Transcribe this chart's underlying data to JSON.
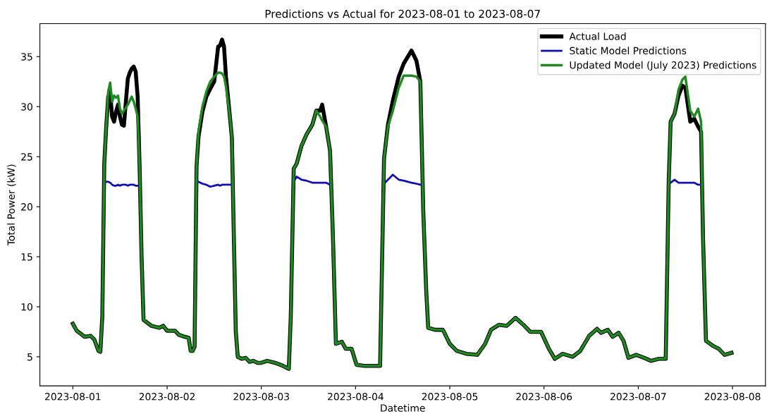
{
  "chart_data": {
    "type": "line",
    "title": "Predictions vs Actual for 2023-08-01 to 2023-08-07",
    "xlabel": "Datetime",
    "ylabel": "Total Power (kW)",
    "x": [
      "2023-08-01T00:00",
      "2023-08-01T01:00",
      "2023-08-01T03:00",
      "2023-08-01T04:30",
      "2023-08-01T05:30",
      "2023-08-01T06:30",
      "2023-08-01T07:00",
      "2023-08-01T07:30",
      "2023-08-01T08:00",
      "2023-08-01T08:30",
      "2023-08-01T09:00",
      "2023-08-01T09:30",
      "2023-08-01T10:00",
      "2023-08-01T10:30",
      "2023-08-01T11:00",
      "2023-08-01T11:30",
      "2023-08-01T12:00",
      "2023-08-01T12:30",
      "2023-08-01T13:00",
      "2023-08-01T13:30",
      "2023-08-01T14:00",
      "2023-08-01T14:30",
      "2023-08-01T15:00",
      "2023-08-01T15:30",
      "2023-08-01T16:00",
      "2023-08-01T16:30",
      "2023-08-01T17:00",
      "2023-08-01T17:30",
      "2023-08-01T18:00",
      "2023-08-01T19:00",
      "2023-08-01T20:00",
      "2023-08-01T21:00",
      "2023-08-01T22:00",
      "2023-08-01T23:00",
      "2023-08-02T00:00",
      "2023-08-02T01:00",
      "2023-08-02T02:00",
      "2023-08-02T03:00",
      "2023-08-02T04:30",
      "2023-08-02T05:30",
      "2023-08-02T06:00",
      "2023-08-02T06:30",
      "2023-08-02T07:00",
      "2023-08-02T07:30",
      "2023-08-02T08:00",
      "2023-08-02T09:00",
      "2023-08-02T10:00",
      "2023-08-02T11:00",
      "2023-08-02T12:00",
      "2023-08-02T13:00",
      "2023-08-02T13:30",
      "2023-08-02T14:00",
      "2023-08-02T14:30",
      "2023-08-02T15:00",
      "2023-08-02T16:00",
      "2023-08-02T16:30",
      "2023-08-02T17:00",
      "2023-08-02T17:30",
      "2023-08-02T18:00",
      "2023-08-02T19:00",
      "2023-08-02T20:00",
      "2023-08-02T21:00",
      "2023-08-02T22:00",
      "2023-08-02T23:00",
      "2023-08-03T00:00",
      "2023-08-03T01:30",
      "2023-08-03T03:30",
      "2023-08-03T05:30",
      "2023-08-03T07:00",
      "2023-08-03T07:30",
      "2023-08-03T08:15",
      "2023-08-03T09:00",
      "2023-08-03T10:15",
      "2023-08-03T11:30",
      "2023-08-03T13:00",
      "2023-08-03T14:00",
      "2023-08-03T15:00",
      "2023-08-03T15:30",
      "2023-08-03T16:30",
      "2023-08-03T17:30",
      "2023-08-03T18:15",
      "2023-08-03T19:00",
      "2023-08-03T20:30",
      "2023-08-03T21:30",
      "2023-08-03T23:00",
      "2023-08-04T00:15",
      "2023-08-04T02:15",
      "2023-08-04T04:15",
      "2023-08-04T06:15",
      "2023-08-04T07:15",
      "2023-08-04T08:15",
      "2023-08-04T09:30",
      "2023-08-04T11:00",
      "2023-08-04T12:15",
      "2023-08-04T14:15",
      "2023-08-04T15:30",
      "2023-08-04T16:30",
      "2023-08-04T17:15",
      "2023-08-04T18:00",
      "2023-08-04T18:30",
      "2023-08-04T20:15",
      "2023-08-04T22:15",
      "2023-08-05T00:00",
      "2023-08-05T01:45",
      "2023-08-05T04:15",
      "2023-08-05T07:00",
      "2023-08-05T09:00",
      "2023-08-05T10:30",
      "2023-08-05T12:30",
      "2023-08-05T14:30",
      "2023-08-05T16:45",
      "2023-08-05T18:45",
      "2023-08-05T20:30",
      "2023-08-05T23:15",
      "2023-08-06T01:15",
      "2023-08-06T02:45",
      "2023-08-06T04:45",
      "2023-08-06T07:15",
      "2023-08-06T09:15",
      "2023-08-06T11:30",
      "2023-08-06T13:30",
      "2023-08-06T14:30",
      "2023-08-06T16:15",
      "2023-08-06T17:30",
      "2023-08-06T19:00",
      "2023-08-06T20:15",
      "2023-08-06T21:30",
      "2023-08-06T23:30",
      "2023-08-07T01:30",
      "2023-08-07T03:15",
      "2023-08-07T05:15",
      "2023-08-07T07:00",
      "2023-08-07T07:45",
      "2023-08-07T08:15",
      "2023-08-07T09:15",
      "2023-08-07T10:15",
      "2023-08-07T11:15",
      "2023-08-07T12:00",
      "2023-08-07T13:15",
      "2023-08-07T14:15",
      "2023-08-07T15:15",
      "2023-08-07T16:00",
      "2023-08-07T16:30",
      "2023-08-07T17:15",
      "2023-08-07T19:00",
      "2023-08-07T20:30",
      "2023-08-07T22:00",
      "2023-08-07T23:45"
    ],
    "series": [
      {
        "name": "Actual Load",
        "color": "#000000",
        "values": [
          8.3,
          7.6,
          7.0,
          7.1,
          6.7,
          5.6,
          5.5,
          9.0,
          24.3,
          28.0,
          31.0,
          31.4,
          29.0,
          28.5,
          29.5,
          30.2,
          29.0,
          28.2,
          28.1,
          30.5,
          32.8,
          33.4,
          33.8,
          34.0,
          33.5,
          31.0,
          24.0,
          15.0,
          8.7,
          8.4,
          8.1,
          8.0,
          7.9,
          8.1,
          7.6,
          7.6,
          7.6,
          7.2,
          7.0,
          6.9,
          5.6,
          5.6,
          6.0,
          24.0,
          27.0,
          29.5,
          31.0,
          31.8,
          32.5,
          36.0,
          36.1,
          36.7,
          36.0,
          33.0,
          29.0,
          26.9,
          17.0,
          7.5,
          5.0,
          4.8,
          4.9,
          4.5,
          4.6,
          4.4,
          4.4,
          4.6,
          4.4,
          4.1,
          3.8,
          9.0,
          23.8,
          24.3,
          26.1,
          27.2,
          28.2,
          29.6,
          29.6,
          30.2,
          28.0,
          25.6,
          16.9,
          6.3,
          6.5,
          5.8,
          5.8,
          4.2,
          4.1,
          4.1,
          4.1,
          24.8,
          28.2,
          30.6,
          33.0,
          34.3,
          35.6,
          34.6,
          32.5,
          19.5,
          11.6,
          7.9,
          7.7,
          7.7,
          6.3,
          5.6,
          5.3,
          5.2,
          6.3,
          7.7,
          8.2,
          8.1,
          8.9,
          8.2,
          7.5,
          7.5,
          5.8,
          4.8,
          5.3,
          5.0,
          5.6,
          7.1,
          7.8,
          7.4,
          7.7,
          7.0,
          7.4,
          6.6,
          4.9,
          5.2,
          4.9,
          4.6,
          4.8,
          4.8,
          22.4,
          28.5,
          29.3,
          31.1,
          32.1,
          31.9,
          28.5,
          28.8,
          28.0,
          27.5,
          16.9,
          6.6,
          6.1,
          5.8,
          5.2,
          5.4
        ]
      },
      {
        "name": "Static Model Predictions",
        "color": "#1010b0",
        "values": [
          null,
          null,
          null,
          null,
          null,
          null,
          null,
          null,
          22.3,
          22.5,
          22.5,
          22.4,
          22.2,
          22.1,
          22.1,
          22.2,
          22.1,
          22.2,
          22.2,
          22.2,
          22.1,
          22.2,
          22.2,
          22.2,
          22.1,
          22.1,
          null,
          null,
          null,
          null,
          null,
          null,
          null,
          null,
          null,
          null,
          null,
          null,
          null,
          null,
          null,
          null,
          null,
          22.5,
          22.5,
          22.3,
          22.2,
          22.0,
          22.1,
          22.2,
          22.1,
          22.2,
          22.2,
          22.2,
          22.2,
          22.2,
          null,
          null,
          null,
          null,
          null,
          null,
          null,
          null,
          null,
          null,
          null,
          null,
          null,
          null,
          22.5,
          23.0,
          22.7,
          22.6,
          22.4,
          22.4,
          22.4,
          22.4,
          22.4,
          22.2,
          null,
          null,
          null,
          null,
          null,
          null,
          null,
          null,
          null,
          22.3,
          22.7,
          23.2,
          22.7,
          22.6,
          22.4,
          22.3,
          22.2,
          null,
          null,
          null,
          null,
          null,
          null,
          null,
          null,
          null,
          null,
          null,
          null,
          null,
          null,
          null,
          null,
          null,
          null,
          null,
          null,
          null,
          null,
          null,
          null,
          null,
          null,
          null,
          null,
          null,
          null,
          null,
          null,
          null,
          null,
          null,
          22.4,
          22.4,
          22.7,
          22.4,
          22.4,
          22.4,
          22.4,
          22.4,
          22.2,
          22.2,
          null,
          null,
          null,
          null,
          null,
          null
        ]
      },
      {
        "name": "Updated Model (July 2023) Predictions",
        "color": "#1f8a1f",
        "values": [
          8.3,
          7.6,
          7.0,
          7.1,
          6.7,
          5.6,
          5.5,
          9.0,
          24.3,
          28.0,
          31.5,
          32.4,
          30.5,
          31.1,
          30.9,
          31.1,
          29.8,
          29.3,
          29.6,
          29.9,
          30.2,
          30.6,
          31.0,
          30.5,
          29.8,
          29.0,
          24.0,
          15.0,
          8.7,
          8.4,
          8.1,
          8.0,
          7.9,
          8.1,
          7.6,
          7.6,
          7.6,
          7.2,
          7.0,
          6.9,
          5.6,
          5.6,
          6.0,
          24.0,
          27.5,
          30.0,
          31.5,
          32.5,
          33.0,
          33.4,
          33.4,
          33.3,
          33.0,
          32.0,
          29.0,
          26.9,
          17.0,
          7.5,
          5.0,
          4.8,
          4.9,
          4.5,
          4.6,
          4.4,
          4.4,
          4.6,
          4.4,
          4.1,
          3.8,
          9.0,
          23.8,
          24.3,
          26.1,
          27.2,
          28.2,
          29.6,
          29.0,
          28.6,
          28.0,
          25.6,
          16.9,
          6.3,
          6.5,
          5.8,
          5.8,
          4.2,
          4.1,
          4.1,
          4.1,
          24.8,
          28.0,
          29.6,
          31.9,
          33.1,
          33.1,
          33.0,
          32.5,
          19.5,
          11.6,
          7.9,
          7.7,
          7.7,
          6.3,
          5.6,
          5.3,
          5.2,
          6.3,
          7.7,
          8.2,
          8.1,
          8.9,
          8.2,
          7.5,
          7.5,
          5.8,
          4.8,
          5.3,
          5.0,
          5.6,
          7.1,
          7.8,
          7.4,
          7.7,
          7.0,
          7.4,
          6.6,
          4.9,
          5.2,
          4.9,
          4.6,
          4.8,
          4.8,
          22.4,
          28.5,
          29.3,
          31.7,
          32.7,
          33.0,
          29.6,
          29.0,
          29.8,
          28.5,
          16.9,
          6.6,
          6.1,
          5.8,
          5.2,
          5.4
        ]
      }
    ],
    "xlim": [
      "2023-07-31T15:36",
      "2023-08-08T08:24"
    ],
    "xticks": [
      "2023-08-01",
      "2023-08-02",
      "2023-08-03",
      "2023-08-04",
      "2023-08-05",
      "2023-08-06",
      "2023-08-07",
      "2023-08-08"
    ],
    "ylim": [
      2.1,
      38.3
    ],
    "yticks": [
      5,
      10,
      15,
      20,
      25,
      30,
      35
    ],
    "legend": "top right",
    "grid": false,
    "marker": "none",
    "line_style": "solid"
  }
}
